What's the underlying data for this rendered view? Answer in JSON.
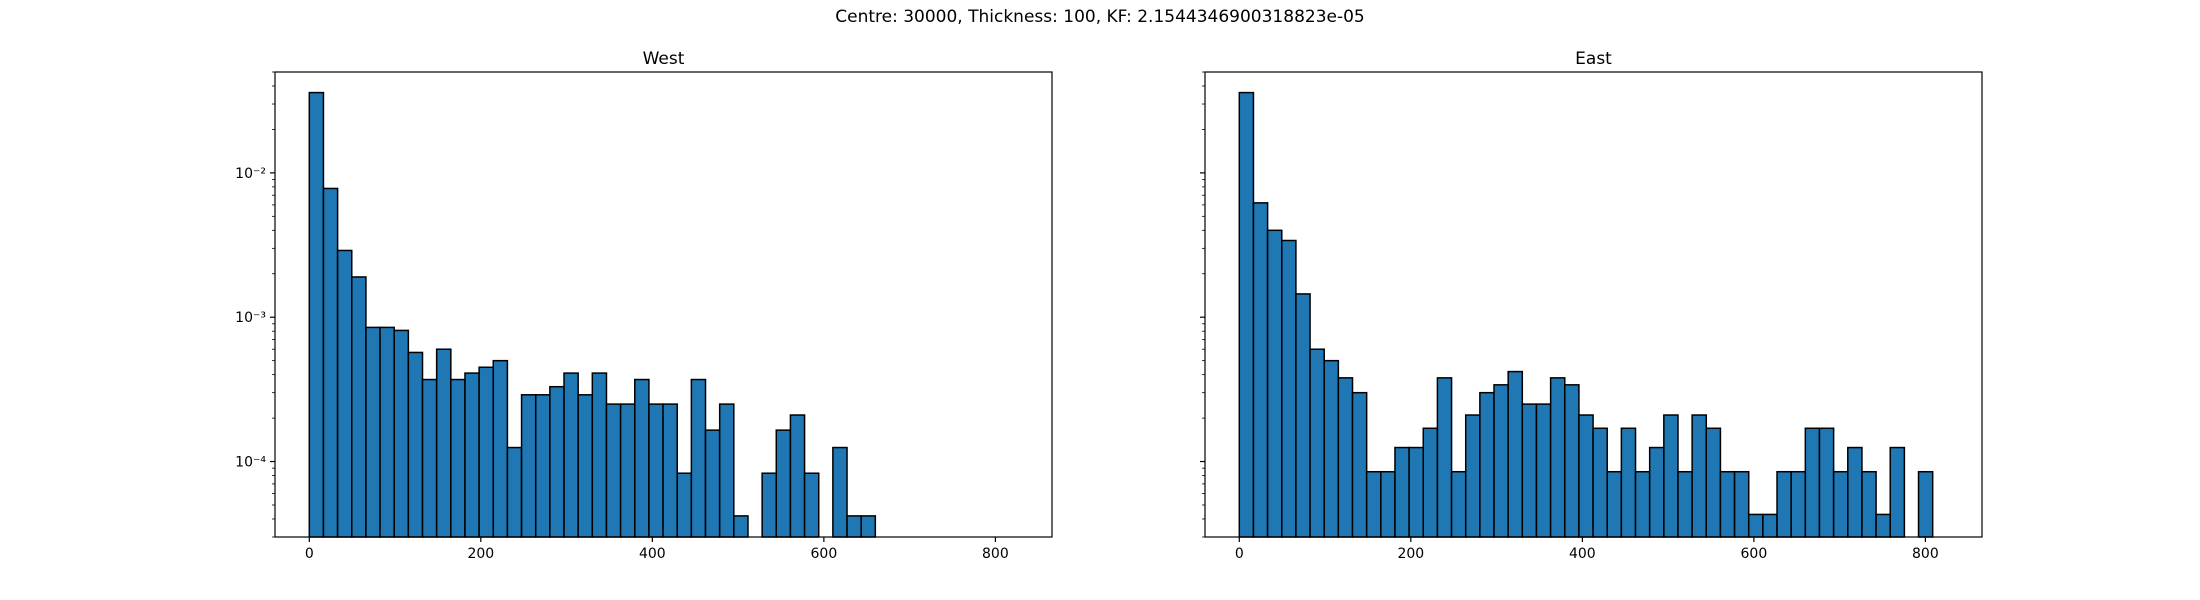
{
  "figure": {
    "suptitle": "Centre: 30000, Thickness: 100, KF: 2.1544346900318823e-05"
  },
  "chart_data": [
    {
      "type": "bar",
      "title": "West",
      "xlabel": "",
      "ylabel": "",
      "yscale": "log",
      "xlim": [
        -40,
        866
      ],
      "ylim": [
        3e-05,
        0.05
      ],
      "xticks": [
        0,
        200,
        400,
        600,
        800
      ],
      "yticks": [
        0.0001,
        0.001,
        0.01
      ],
      "ytick_labels": [
        "10⁻⁴",
        "10⁻³",
        "10⁻²"
      ],
      "bar_color": "#1f77b4",
      "edge_color": "#000000",
      "bin_width": 16.5,
      "bin_start": 0,
      "values": [
        0.036,
        0.0078,
        0.0029,
        0.0019,
        0.00085,
        0.00085,
        0.00081,
        0.00057,
        0.00037,
        0.0006,
        0.00037,
        0.00041,
        0.00045,
        0.0005,
        0.000125,
        0.00029,
        0.00029,
        0.00033,
        0.00041,
        0.00029,
        0.00041,
        0.00025,
        0.00025,
        0.00037,
        0.00025,
        0.00025,
        8.3e-05,
        0.00037,
        0.000165,
        0.00025,
        4.2e-05,
        0,
        8.3e-05,
        0.000165,
        0.00021,
        8.3e-05,
        0,
        0.000125,
        4.2e-05,
        4.2e-05,
        0,
        0,
        0,
        0,
        0,
        0,
        0,
        0,
        0,
        0
      ]
    },
    {
      "type": "bar",
      "title": "East",
      "xlabel": "",
      "ylabel": "",
      "yscale": "log",
      "xlim": [
        -40,
        866
      ],
      "ylim": [
        3e-05,
        0.05
      ],
      "xticks": [
        0,
        200,
        400,
        600,
        800
      ],
      "yticks": [
        0.0001,
        0.001,
        0.01
      ],
      "bar_color": "#1f77b4",
      "edge_color": "#000000",
      "bin_width": 16.5,
      "bin_start": 0,
      "values": [
        0.036,
        0.0062,
        0.004,
        0.0034,
        0.00145,
        0.0006,
        0.0005,
        0.00038,
        0.0003,
        8.5e-05,
        8.5e-05,
        0.000125,
        0.000125,
        0.00017,
        0.00038,
        8.5e-05,
        0.00021,
        0.0003,
        0.00034,
        0.00042,
        0.00025,
        0.00025,
        0.00038,
        0.00034,
        0.00021,
        0.00017,
        8.5e-05,
        0.00017,
        8.5e-05,
        0.000125,
        0.00021,
        8.5e-05,
        0.00021,
        0.00017,
        8.5e-05,
        8.5e-05,
        4.3e-05,
        4.3e-05,
        8.5e-05,
        8.5e-05,
        0.00017,
        0.00017,
        8.5e-05,
        0.000125,
        8.5e-05,
        4.3e-05,
        0.000125,
        0,
        8.5e-05,
        0
      ]
    }
  ]
}
